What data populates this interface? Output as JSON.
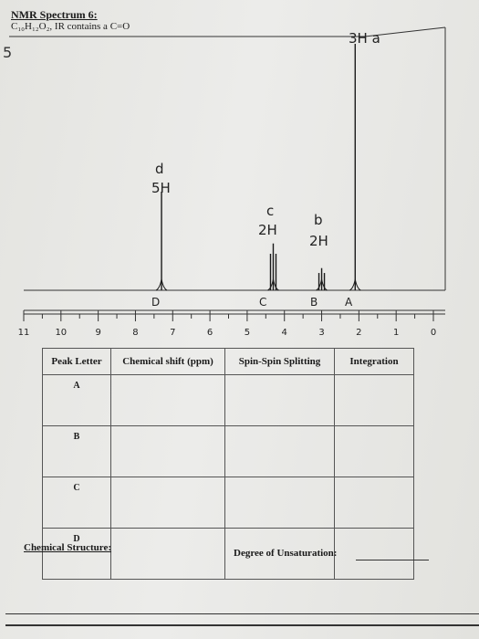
{
  "header": {
    "title": "NMR Spectrum 6:",
    "formula": "C₁₀H₁₂O₂, IR contains a C=O",
    "margin_number": "5"
  },
  "annotations": {
    "d_letter": "d",
    "d_h": "5H",
    "c_letter": "c",
    "c_h": "2H",
    "b_letter": "b",
    "b_h": "2H",
    "a_note": "3H a"
  },
  "peak_labels": {
    "D": "D",
    "C": "C",
    "B": "B",
    "A": "A"
  },
  "axis_ticks": [
    "11",
    "10",
    "9",
    "8",
    "7",
    "6",
    "5",
    "4",
    "3",
    "2",
    "1",
    "0"
  ],
  "table": {
    "headers": [
      "Peak Letter",
      "Chemical shift (ppm)",
      "Spin-Spin Splitting",
      "Integration"
    ],
    "rows": [
      "A",
      "B",
      "C",
      "D"
    ]
  },
  "footer": {
    "structure_label": "Chemical Structure:",
    "unsaturation_label": "Degree of Unsaturation:"
  },
  "chart_data": {
    "type": "line",
    "title": "",
    "xlabel": "",
    "ylabel": "",
    "xlim": [
      11,
      0
    ],
    "x_ticks": [
      11,
      10,
      9,
      8,
      7,
      6,
      5,
      4,
      3,
      2,
      1,
      0
    ],
    "peaks": [
      {
        "label": "D",
        "shift": 7.3,
        "integration": "5H",
        "relative_height": 0.4
      },
      {
        "label": "C",
        "shift": 4.3,
        "integration": "2H",
        "relative_height": 0.19
      },
      {
        "label": "B",
        "shift": 3.0,
        "integration": "2H",
        "relative_height": 0.09
      },
      {
        "label": "A",
        "shift": 2.1,
        "integration": "3H",
        "relative_height": 1.0
      }
    ]
  }
}
